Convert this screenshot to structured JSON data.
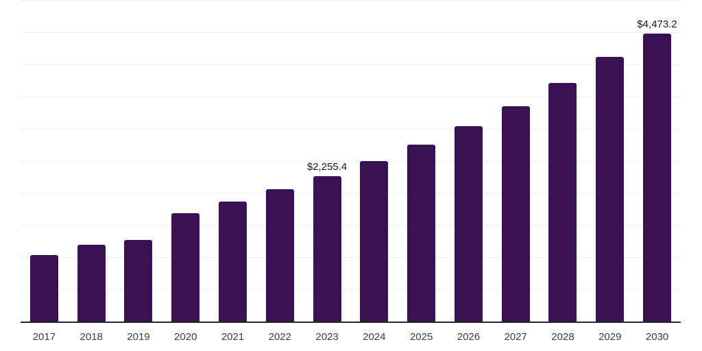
{
  "chart_data": {
    "type": "bar",
    "title": "",
    "xlabel": "",
    "ylabel": "",
    "categories": [
      "2017",
      "2018",
      "2019",
      "2020",
      "2021",
      "2022",
      "2023",
      "2024",
      "2025",
      "2026",
      "2027",
      "2028",
      "2029",
      "2030"
    ],
    "values": [
      1032,
      1197,
      1266,
      1686,
      1862,
      2053,
      2255.4,
      2495,
      2750,
      3043,
      3346,
      3713,
      4112,
      4473.2
    ],
    "bar_labels": [
      null,
      null,
      null,
      null,
      null,
      null,
      "$2,255.4",
      null,
      null,
      null,
      null,
      null,
      null,
      "$4,473.2"
    ],
    "ylim": [
      0,
      5000
    ],
    "gridline_interval": 500,
    "grid": true,
    "legend": false,
    "y_axis_labels_shown": false,
    "colors": {
      "bar": "#3a1254",
      "gridline": "#efefef",
      "axis_line": "#282828",
      "tick_label": "#3d3d3d",
      "data_label": "#1a1a1a",
      "background": "#ffffff"
    }
  }
}
